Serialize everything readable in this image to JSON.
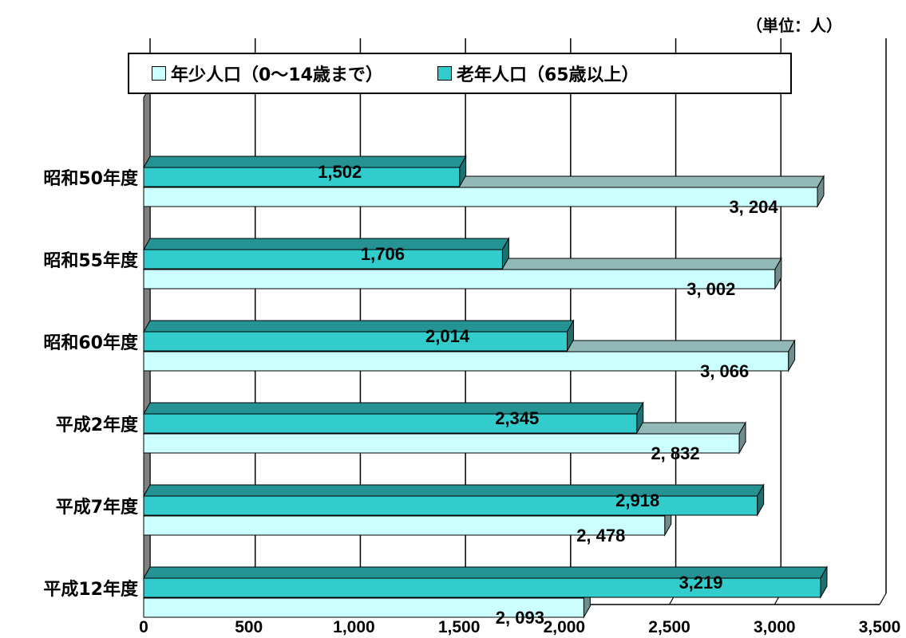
{
  "unit_label": "（単位：人）",
  "chart_data": {
    "type": "bar",
    "orientation": "horizontal",
    "categories": [
      "昭和50年度",
      "昭和55年度",
      "昭和60年度",
      "平成2年度",
      "平成7年度",
      "平成12年度"
    ],
    "series": [
      {
        "name": "老年人口（65歳以上）",
        "values": [
          1502,
          1706,
          2014,
          2345,
          2918,
          3219
        ],
        "labels": [
          "1,502",
          "1,706",
          "2,014",
          "2,345",
          "2,918",
          "3,219"
        ],
        "color": "#33cccc"
      },
      {
        "name": "年少人口（0～14歳まで）",
        "values": [
          3204,
          3002,
          3066,
          2832,
          2478,
          2093
        ],
        "labels": [
          "3, 204",
          "3, 002",
          "3, 066",
          "2, 832",
          "2, 478",
          "2, 093"
        ],
        "color": "#ccffff"
      }
    ],
    "xlim": [
      0,
      3500
    ],
    "xticks": [
      "0",
      "500",
      "1,000",
      "1,500",
      "2,000",
      "2,500",
      "3,000",
      "3,500"
    ],
    "grid": true,
    "legend_position": "top",
    "style": "3d"
  },
  "legend": {
    "young_label": "年少人口（0～14歳まで）",
    "old_label": "老年人口（65歳以上）",
    "young_color": "#ccffff",
    "old_color": "#33cccc"
  }
}
